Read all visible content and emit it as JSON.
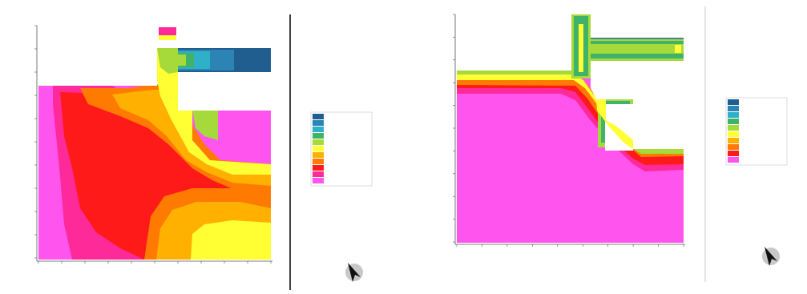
{
  "chart_data": [
    {
      "type": "heatmap",
      "title": "",
      "subtitle": "",
      "xlabel": "",
      "ylabel": "",
      "yticks": [
        "",
        "",
        "",
        "",
        "",
        "",
        "",
        "",
        "",
        "",
        ""
      ],
      "xticks": [
        "",
        "",
        "",
        "",
        "",
        "",
        "",
        "",
        "",
        "",
        ""
      ],
      "legend": {
        "title": "",
        "items": [
          {
            "color": "#1f5e8f",
            "label": ""
          },
          {
            "color": "#2b84b3",
            "label": ""
          },
          {
            "color": "#2fb0c9",
            "label": ""
          },
          {
            "color": "#3fb36a",
            "label": ""
          },
          {
            "color": "#a6d93a",
            "label": ""
          },
          {
            "color": "#ffff33",
            "label": ""
          },
          {
            "color": "#ffb000",
            "label": ""
          },
          {
            "color": "#ff7a00",
            "label": ""
          },
          {
            "color": "#ff1a1a",
            "label": ""
          },
          {
            "color": "#ff2a9a",
            "label": ""
          },
          {
            "color": "#ff55ee",
            "label": ""
          }
        ],
        "stats": [
          "",
          ""
        ]
      }
    },
    {
      "type": "heatmap",
      "title": "",
      "subtitle": "",
      "xlabel": "",
      "ylabel": "",
      "yticks": [
        "",
        "",
        "",
        "",
        "",
        "",
        "",
        "",
        "",
        "",
        ""
      ],
      "xticks": [
        "",
        "",
        "",
        "",
        "",
        "",
        "",
        "",
        "",
        ""
      ],
      "legend": {
        "title": "",
        "items": [
          {
            "color": "#1f5e8f",
            "label": ""
          },
          {
            "color": "#2b84b3",
            "label": ""
          },
          {
            "color": "#2fb0c9",
            "label": ""
          },
          {
            "color": "#3fb36a",
            "label": ""
          },
          {
            "color": "#a6d93a",
            "label": ""
          },
          {
            "color": "#ffff33",
            "label": ""
          },
          {
            "color": "#ffb000",
            "label": ""
          },
          {
            "color": "#ff7a00",
            "label": ""
          },
          {
            "color": "#ff1a1a",
            "label": ""
          },
          {
            "color": "#ff55ee",
            "label": ""
          }
        ],
        "stats": [
          "",
          ""
        ]
      }
    }
  ]
}
